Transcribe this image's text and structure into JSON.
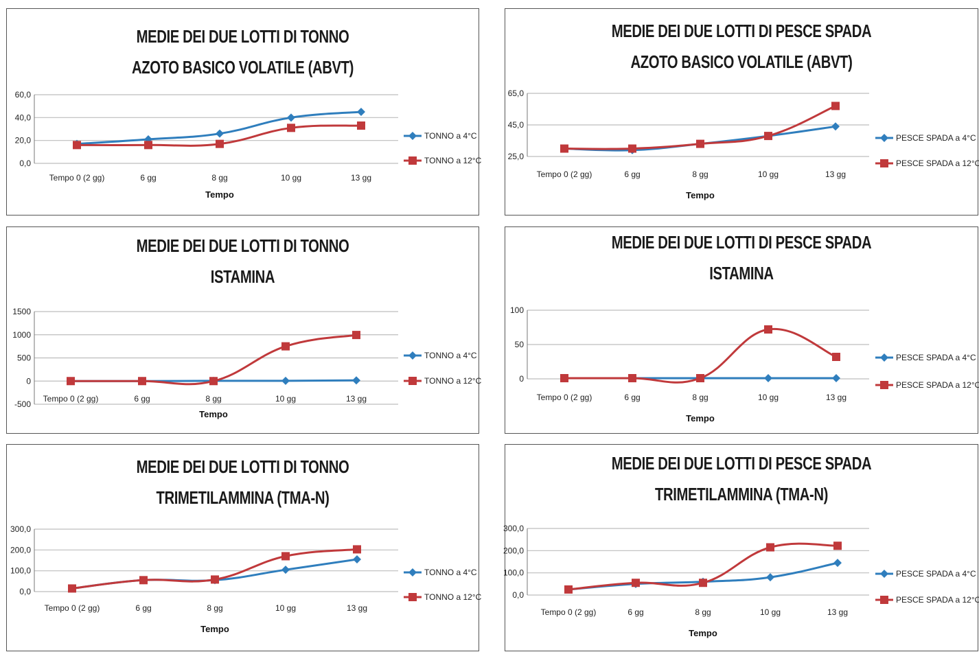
{
  "colors": {
    "series_4c": "#2f7ebd",
    "series_12c": "#c0393b",
    "grid": "#bdbdbd",
    "axis": "#777777"
  },
  "chart_data": [
    {
      "type": "line",
      "title": [
        "MEDIE DEI DUE LOTTI DI TONNO",
        "AZOTO BASICO VOLATILE (ABVT)"
      ],
      "categories": [
        "Tempo 0 (2 gg)",
        "6 gg",
        "8 gg",
        "10 gg",
        "13 gg"
      ],
      "xlabel": "Tempo",
      "yticks": [
        "0,0",
        "20,0",
        "40,0",
        "60,0"
      ],
      "ylim": [
        0,
        60
      ],
      "legend_position": "right",
      "series": [
        {
          "name": "TONNO a 4°C",
          "marker": "diamond",
          "values": [
            17,
            21,
            26,
            40,
            45
          ]
        },
        {
          "name": "TONNO a 12°C",
          "marker": "square",
          "values": [
            16,
            16,
            17,
            31,
            33
          ]
        }
      ]
    },
    {
      "type": "line",
      "title": [
        "MEDIE DEI DUE LOTTI DI PESCE SPADA",
        "AZOTO BASICO VOLATILE (ABVT)"
      ],
      "categories": [
        "Tempo 0 (2 gg)",
        "6 gg",
        "8 gg",
        "10 gg",
        "13 gg"
      ],
      "xlabel": "Tempo",
      "yticks": [
        "25,0",
        "45,0",
        "65,0"
      ],
      "ylim": [
        25,
        65
      ],
      "legend_position": "right",
      "series": [
        {
          "name": "PESCE SPADA a 4°C",
          "marker": "diamond",
          "values": [
            30,
            29,
            33,
            38,
            44
          ]
        },
        {
          "name": "PESCE SPADA a 12°C",
          "marker": "square",
          "values": [
            30,
            30,
            33,
            38,
            57
          ]
        }
      ]
    },
    {
      "type": "line",
      "title": [
        "MEDIE DEI DUE LOTTI DI TONNO",
        "ISTAMINA"
      ],
      "categories": [
        "Tempo 0 (2 gg)",
        "6 gg",
        "8 gg",
        "10 gg",
        "13 gg"
      ],
      "xlabel": "Tempo",
      "yticks": [
        "-500",
        "0",
        "500",
        "1000",
        "1500"
      ],
      "ylim": [
        -500,
        1500
      ],
      "legend_position": "right",
      "series": [
        {
          "name": "TONNO a 4°C",
          "marker": "diamond",
          "values": [
            0,
            0,
            5,
            5,
            15
          ]
        },
        {
          "name": "TONNO a 12°C",
          "marker": "square",
          "values": [
            0,
            0,
            0,
            750,
            995
          ]
        }
      ]
    },
    {
      "type": "line",
      "title": [
        "MEDIE DEI DUE LOTTI DI PESCE SPADA",
        "ISTAMINA"
      ],
      "categories": [
        "Tempo 0 (2 gg)",
        "6 gg",
        "8 gg",
        "10 gg",
        "13 gg"
      ],
      "xlabel": "Tempo",
      "yticks": [
        "0",
        "50",
        "100"
      ],
      "ylim": [
        0,
        100
      ],
      "legend_position": "right",
      "series": [
        {
          "name": "PESCE SPADA a 4°C",
          "marker": "diamond",
          "values": [
            1,
            1,
            1,
            1,
            1
          ]
        },
        {
          "name": "PESCE SPADA a 12°C",
          "marker": "square",
          "values": [
            1,
            1,
            1,
            72,
            32
          ]
        }
      ]
    },
    {
      "type": "line",
      "title": [
        "MEDIE DEI DUE LOTTI DI TONNO",
        "TRIMETILAMMINA (TMA-N)"
      ],
      "categories": [
        "Tempo 0 (2 gg)",
        "6 gg",
        "8 gg",
        "10 gg",
        "13 gg"
      ],
      "xlabel": "Tempo",
      "yticks": [
        "0,0",
        "100,0",
        "200,0",
        "300,0"
      ],
      "ylim": [
        0,
        300
      ],
      "legend_position": "right",
      "series": [
        {
          "name": "TONNO a 4°C",
          "marker": "diamond",
          "values": [
            15,
            55,
            55,
            105,
            155
          ]
        },
        {
          "name": "TONNO a 12°C",
          "marker": "square",
          "values": [
            15,
            55,
            58,
            170,
            203
          ]
        }
      ]
    },
    {
      "type": "line",
      "title": [
        "MEDIE DEI DUE LOTTI DI PESCE SPADA",
        "TRIMETILAMMINA (TMA-N)"
      ],
      "categories": [
        "Tempo 0 (2 gg)",
        "6 gg",
        "8 gg",
        "10 gg",
        "13 gg"
      ],
      "xlabel": "Tempo",
      "yticks": [
        "0,0",
        "100,0",
        "200,0",
        "300,0"
      ],
      "ylim": [
        0,
        300
      ],
      "legend_position": "right",
      "series": [
        {
          "name": "PESCE SPADA a 4°C",
          "marker": "diamond",
          "values": [
            25,
            50,
            60,
            80,
            145
          ]
        },
        {
          "name": "PESCE SPADA a 12°C",
          "marker": "square",
          "values": [
            25,
            55,
            55,
            215,
            222
          ]
        }
      ]
    }
  ]
}
